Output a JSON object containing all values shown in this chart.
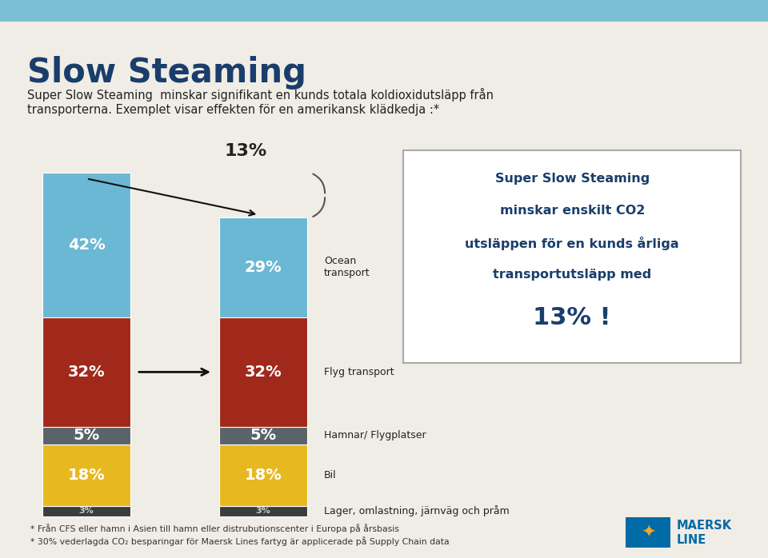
{
  "title": "Slow Steaming",
  "subtitle_line1": "Super Slow Steaming  minskar signifikant en kunds totala koldioxidutsläpp från",
  "subtitle_line2": "transporterna. Exemplet visar effekten för en amerikansk klädkedja :*",
  "header_color": "#7CBFD4",
  "bg_color": "#F0EDE6",
  "segments_bar1": [
    42,
    32,
    5,
    18,
    3
  ],
  "segments_bar2": [
    29,
    32,
    5,
    18,
    3
  ],
  "segment_colors": [
    "#6BB8D4",
    "#A0291C",
    "#5A6368",
    "#E8B820",
    "#3A3C3E"
  ],
  "reduction_pct": "13%",
  "box_text_line1": "Super Slow Steaming",
  "box_text_line2": "minskar enskilt CO2",
  "box_text_line3": "utsläppen för en kunds årliga",
  "box_text_line4": "transportutsläpp med",
  "box_text_pct": "13% !",
  "footnote1": "* Från CFS eller hamn i Asien till hamn eller distrubutionscenter i Europa på årsbasis",
  "footnote2": "* 30% vederlagda CO₂ besparingar för Maersk Lines fartyg är applicerade på Supply Chain data",
  "maersk_blue": "#006BA6"
}
